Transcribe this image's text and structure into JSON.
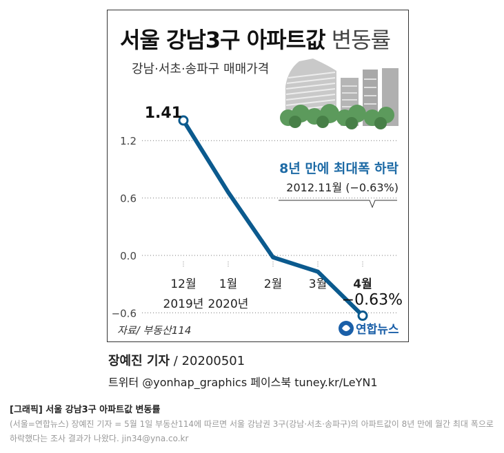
{
  "graphic": {
    "title_main": "서울 강남3구 아파트값",
    "title_sub": " 변동률",
    "subtitle": "강남·서초·송파구 매매가격",
    "source": "자료/ 부동산114",
    "logo_text": "연합뉴스"
  },
  "chart_data": {
    "type": "line",
    "x_labels": [
      "12월\n2019년",
      "1월\n2020년",
      "2월",
      "3월",
      "4월"
    ],
    "values": [
      1.41,
      0.66,
      -0.02,
      -0.17,
      -0.63
    ],
    "y_ticks": [
      "1.2",
      "0.6",
      "0.0",
      "−0.6"
    ],
    "ylim": [
      -0.75,
      1.6
    ],
    "first_label": "1.41",
    "last_label": "−0.63%",
    "bold_last_x": true,
    "line_color": "#0b5a8e",
    "annotation_title": "8년 만에 최대폭 하락",
    "annotation_detail": "2012.11월 (−0.63%)",
    "annotation_color": "#1d6aa5"
  },
  "byline": {
    "reporter": "장예진 기자",
    "date": " / 20200501"
  },
  "social": "트위터 @yonhap_graphics  페이스북 tuney.kr/LeYN1",
  "caption": {
    "title": "[그래픽] 서울 강남3구 아파트값 변동률",
    "body": "(서울=연합뉴스) 장예진 기자 = 5월 1일 부동산114에 따르면 서울 강남권 3구(강남·서초·송파구)의 아파트값이 8년 만에 월간 최대 폭으로 하락했다는 조사 결과가 나왔다. jin34@yna.co.kr"
  }
}
